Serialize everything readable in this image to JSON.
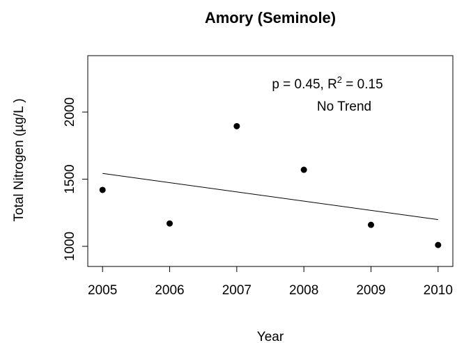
{
  "chart_data": {
    "type": "scatter",
    "title": "Amory (Seminole)",
    "x_label": "Year",
    "y_label": "Total Nitrogen (µg/L )",
    "x": [
      2005,
      2006,
      2007,
      2008,
      2009,
      2010
    ],
    "values": [
      1420,
      1170,
      1895,
      1570,
      1160,
      1010
    ],
    "color": "#000000",
    "trend": {
      "x": [
        2005,
        2010
      ],
      "values": [
        1543,
        1199
      ]
    },
    "annotation": [
      "p = 0.45, R",
      "2",
      " = 0.15"
    ],
    "annotation2": "No Trend",
    "xlim": [
      2004.78,
      2010.22
    ],
    "ylim": [
      850,
      2420
    ],
    "xticks": [
      2005,
      2006,
      2007,
      2008,
      2009,
      2010
    ],
    "yticks": [
      1000,
      1500,
      2000
    ]
  }
}
